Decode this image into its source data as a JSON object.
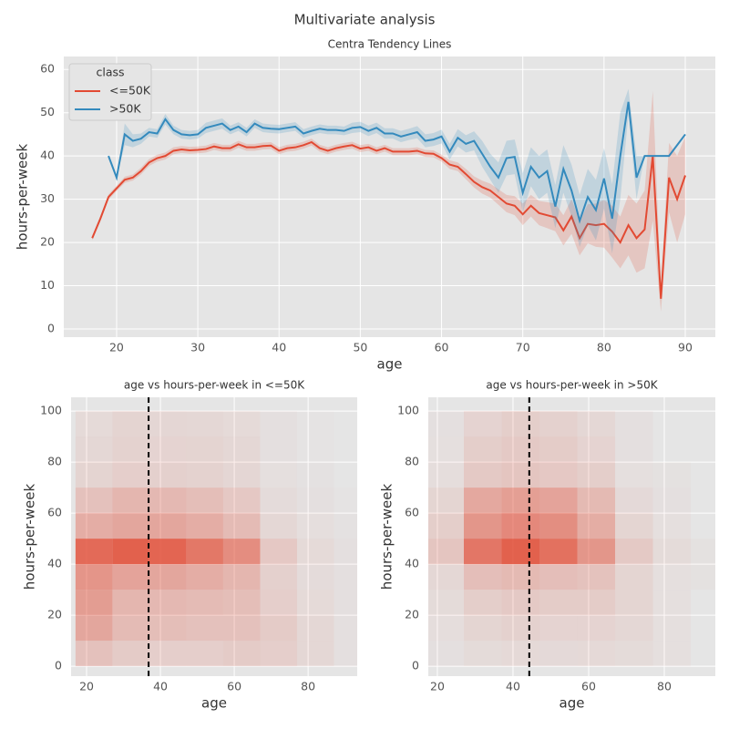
{
  "title": "Multivariate analysis",
  "chart_data": [
    {
      "type": "line",
      "title": "Centra Tendency Lines",
      "xlabel": "age",
      "ylabel": "hours-per-week",
      "x": [
        17,
        18,
        19,
        20,
        21,
        22,
        23,
        24,
        25,
        26,
        27,
        28,
        29,
        30,
        31,
        32,
        33,
        34,
        35,
        36,
        37,
        38,
        39,
        40,
        41,
        42,
        43,
        44,
        45,
        46,
        47,
        48,
        49,
        50,
        51,
        52,
        53,
        54,
        55,
        56,
        57,
        58,
        59,
        60,
        61,
        62,
        63,
        64,
        65,
        66,
        67,
        68,
        69,
        70,
        71,
        72,
        73,
        74,
        75,
        76,
        77,
        78,
        79,
        80,
        81,
        82,
        83,
        84,
        85,
        86,
        87,
        88,
        89,
        90
      ],
      "legend_title": "class",
      "legend": "upper left",
      "grid": true,
      "series": [
        {
          "name": "<=50K",
          "color": "#e24a33",
          "values": [
            21,
            25.5,
            30.5,
            32.5,
            34.5,
            35,
            36.5,
            38.5,
            39.5,
            40,
            41.2,
            41.5,
            41.3,
            41.4,
            41.6,
            42.2,
            41.8,
            41.8,
            42.7,
            42,
            42,
            42.3,
            42.4,
            41.2,
            41.8,
            42,
            42.5,
            43.2,
            41.8,
            41.2,
            41.8,
            42.2,
            42.5,
            41.7,
            42,
            41.2,
            41.8,
            41,
            41,
            41,
            41.2,
            40.6,
            40.5,
            39.5,
            38,
            37.5,
            35.8,
            34,
            32.8,
            32,
            30.5,
            29,
            28.5,
            26.5,
            28.5,
            26.8,
            26.3,
            25.8,
            22.8,
            26,
            21,
            24.3,
            24,
            24.3,
            22.5,
            20,
            24,
            21,
            23,
            40,
            7,
            35,
            30,
            35.5
          ],
          "ci": [
            0.5,
            0.6,
            0.6,
            0.6,
            0.7,
            0.7,
            0.8,
            0.8,
            0.8,
            0.8,
            0.8,
            0.8,
            0.8,
            0.8,
            0.8,
            0.8,
            0.8,
            0.8,
            0.8,
            0.8,
            0.8,
            0.8,
            0.8,
            0.8,
            0.8,
            0.8,
            0.8,
            0.8,
            0.8,
            0.8,
            0.8,
            0.8,
            0.8,
            0.8,
            0.8,
            0.8,
            0.8,
            0.8,
            0.8,
            0.8,
            0.8,
            0.8,
            0.8,
            0.8,
            1,
            1,
            1.2,
            1.3,
            1.5,
            1.6,
            1.8,
            2,
            2.2,
            2.5,
            2.5,
            2.8,
            3,
            3.2,
            3.5,
            4,
            4,
            4.5,
            5,
            5.5,
            6,
            6,
            7,
            8,
            9,
            15,
            3,
            8,
            10,
            9
          ]
        },
        {
          "name": ">50K",
          "color": "#348abd",
          "values": [
            null,
            null,
            40,
            35,
            45,
            43.5,
            44,
            45.5,
            45.2,
            48.5,
            46,
            45,
            44.8,
            45,
            46.5,
            47,
            47.5,
            46,
            46.8,
            45.5,
            47.5,
            46.5,
            46.3,
            46.2,
            46.5,
            46.8,
            45.2,
            45.8,
            46.3,
            46,
            46,
            45.8,
            46.5,
            46.7,
            45.8,
            46.5,
            45.2,
            45.2,
            44.5,
            45,
            45.5,
            43.5,
            43.8,
            44.5,
            41,
            44.2,
            42.8,
            43.5,
            40.5,
            37.5,
            35,
            39.5,
            39.8,
            31.5,
            37.5,
            35,
            36.5,
            28.3,
            37,
            32,
            25,
            30.5,
            27.5,
            34.8,
            25.5,
            40,
            52.5,
            35,
            40,
            40,
            40,
            40,
            42.5,
            45
          ],
          "ci": [
            null,
            null,
            0,
            0,
            2.5,
            1.5,
            1.2,
            1,
            1,
            1.2,
            1,
            1,
            1,
            1,
            1.2,
            1.2,
            1.2,
            1,
            1,
            1,
            1,
            1,
            1,
            1,
            1,
            1,
            1,
            1,
            1,
            1,
            1,
            1,
            1.2,
            1.2,
            1.2,
            1.2,
            1.2,
            1.2,
            1.3,
            1.3,
            1.4,
            1.5,
            1.5,
            1.6,
            1.8,
            2,
            2,
            2.2,
            3,
            3,
            3.5,
            4,
            4,
            4.5,
            4.5,
            5,
            5,
            5,
            5.5,
            6,
            6,
            6.5,
            7,
            7,
            8,
            10,
            3,
            5,
            0,
            0,
            0,
            0,
            0,
            0
          ]
        }
      ],
      "xlim": [
        13.5,
        93.7
      ],
      "xticks": [
        20,
        30,
        40,
        50,
        60,
        70,
        80,
        90
      ],
      "ylim": [
        -1.9,
        63
      ],
      "yticks": [
        0,
        10,
        20,
        30,
        40,
        50,
        60
      ]
    },
    {
      "type": "hist2d",
      "title": "age vs hours-per-week in <=50K",
      "xlabel": "age",
      "ylabel": "hours-per-week",
      "color": "#e24a33",
      "grid": true,
      "xbins": [
        17,
        27,
        37,
        47,
        57,
        67,
        77,
        87,
        97
      ],
      "ybins": [
        0,
        10,
        20,
        30,
        40,
        50,
        60,
        70,
        80,
        90,
        100
      ],
      "counts": [
        [
          300,
          150,
          120,
          120,
          150,
          120,
          40,
          5
        ],
        [
          900,
          400,
          350,
          300,
          300,
          150,
          40,
          5
        ],
        [
          1200,
          500,
          450,
          400,
          350,
          120,
          30,
          5
        ],
        [
          1500,
          1000,
          900,
          700,
          500,
          100,
          20,
          5
        ],
        [
          3500,
          4000,
          3800,
          2800,
          1800,
          200,
          30,
          5
        ],
        [
          700,
          900,
          900,
          700,
          400,
          40,
          10,
          2
        ],
        [
          300,
          500,
          450,
          350,
          200,
          20,
          5,
          1
        ],
        [
          60,
          120,
          100,
          80,
          50,
          8,
          2,
          0
        ],
        [
          40,
          80,
          70,
          60,
          40,
          5,
          1,
          0
        ],
        [
          30,
          60,
          50,
          40,
          30,
          5,
          1,
          0
        ]
      ],
      "mean": 36.8,
      "xlim": [
        15.8,
        93.3
      ],
      "xticks": [
        20,
        40,
        60,
        80
      ],
      "ylim": [
        -3.9,
        105.4
      ],
      "yticks": [
        0,
        20,
        40,
        60,
        80,
        100
      ]
    },
    {
      "type": "hist2d",
      "title": "age vs hours-per-week in >50K",
      "xlabel": "age",
      "ylabel": "hours-per-week",
      "color": "#e24a33",
      "grid": true,
      "xbins": [
        17,
        27,
        37,
        47,
        57,
        67,
        77,
        87,
        97
      ],
      "ybins": [
        0,
        10,
        20,
        30,
        40,
        50,
        60,
        70,
        80,
        90,
        100
      ],
      "counts": [
        [
          2,
          8,
          12,
          10,
          12,
          8,
          3,
          0
        ],
        [
          5,
          20,
          30,
          25,
          25,
          15,
          3,
          0
        ],
        [
          8,
          40,
          60,
          50,
          50,
          20,
          3,
          0
        ],
        [
          15,
          120,
          150,
          120,
          100,
          20,
          3,
          1
        ],
        [
          80,
          1000,
          1400,
          1100,
          500,
          60,
          8,
          1
        ],
        [
          40,
          500,
          700,
          600,
          250,
          20,
          3,
          0
        ],
        [
          20,
          300,
          400,
          350,
          150,
          10,
          2,
          0
        ],
        [
          5,
          60,
          80,
          70,
          40,
          3,
          1,
          0
        ],
        [
          3,
          40,
          60,
          50,
          25,
          2,
          0,
          0
        ],
        [
          2,
          25,
          40,
          30,
          15,
          2,
          0,
          0
        ]
      ],
      "mean": 44.3,
      "xlim": [
        17.6,
        93.5
      ],
      "xticks": [
        20,
        40,
        60,
        80
      ],
      "ylim": [
        -3.9,
        105.4
      ],
      "yticks": [
        0,
        20,
        40,
        60,
        80,
        100
      ]
    }
  ]
}
